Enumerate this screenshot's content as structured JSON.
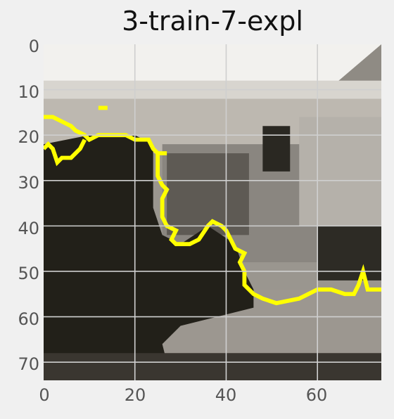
{
  "title": "3-train-7-expl",
  "image": {
    "description_semantic": "low-resolution grayscale street photo with a yellow explanation contour overlaid",
    "overlay_color": "#ffff00",
    "grid": true
  },
  "axes": {
    "x_ticks": [
      "0",
      "20",
      "40",
      "60"
    ],
    "y_ticks": [
      "0",
      "10",
      "20",
      "30",
      "40",
      "50",
      "60",
      "70"
    ],
    "xlim": [
      0,
      74
    ],
    "ylim": [
      0,
      74
    ]
  }
}
